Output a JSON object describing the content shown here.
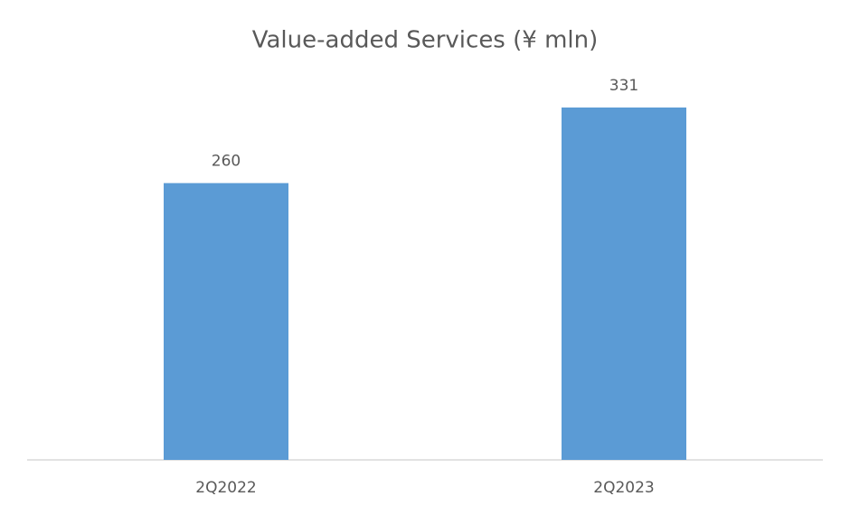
{
  "chart_data": {
    "type": "bar",
    "title": "Value-added Services (¥ mln)",
    "categories": [
      "2Q2022",
      "2Q2023"
    ],
    "values": [
      260,
      331
    ],
    "color": "#5b9bd5"
  }
}
